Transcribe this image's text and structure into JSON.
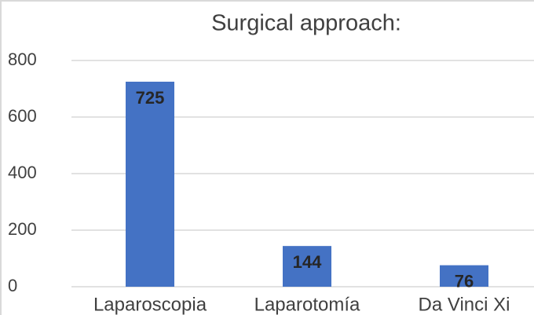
{
  "chart_data": {
    "type": "bar",
    "title": "Surgical approach:",
    "categories": [
      "Laparoscopia",
      "Laparotomía",
      "Da Vinci Xi"
    ],
    "values": [
      725,
      144,
      76
    ],
    "color": "#4472c4",
    "ylim": [
      0,
      800
    ],
    "yticks": [
      0,
      200,
      400,
      600,
      800
    ],
    "grid": true
  }
}
